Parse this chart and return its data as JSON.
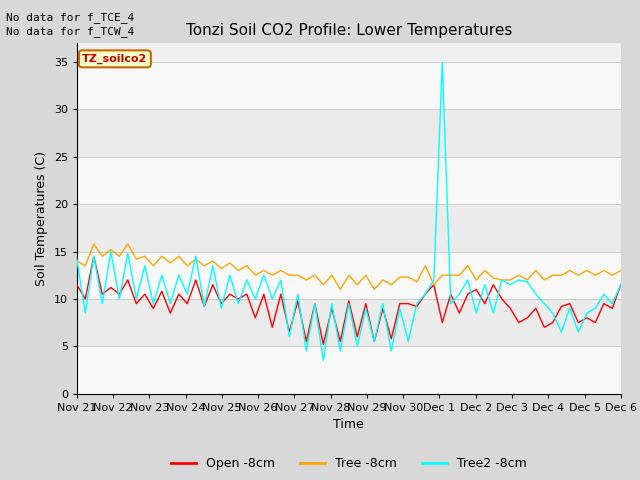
{
  "title": "Tonzi Soil CO2 Profile: Lower Temperatures",
  "ylabel": "Soil Temperatures (C)",
  "xlabel": "Time",
  "annotations": [
    "No data for f_TCE_4",
    "No data for f_TCW_4"
  ],
  "watermark": "TZ_soilco2",
  "ylim": [
    0,
    37
  ],
  "yticks": [
    0,
    5,
    10,
    15,
    20,
    25,
    30,
    35
  ],
  "xtick_labels": [
    "Nov 21",
    "Nov 22",
    "Nov 23",
    "Nov 24",
    "Nov 25",
    "Nov 26",
    "Nov 27",
    "Nov 28",
    "Nov 29",
    "Nov 30",
    "Dec 1",
    "Dec 2",
    "Dec 3",
    "Dec 4",
    "Dec 5",
    "Dec 6"
  ],
  "legend_labels": [
    "Open -8cm",
    "Tree -8cm",
    "Tree2 -8cm"
  ],
  "legend_colors": [
    "#ff0000",
    "#ffa500",
    "#00ffff"
  ],
  "bg_color": "#d8d8d8",
  "plot_bg_color": "#f0f0f0",
  "open_8cm": [
    11.5,
    10.0,
    14.5,
    10.5,
    11.2,
    10.5,
    12.0,
    9.5,
    10.5,
    9.0,
    10.8,
    8.5,
    10.5,
    9.5,
    12.0,
    9.2,
    11.5,
    9.5,
    10.5,
    10.0,
    10.5,
    8.0,
    10.5,
    7.0,
    10.5,
    6.5,
    9.8,
    5.5,
    9.5,
    5.2,
    9.0,
    5.5,
    9.8,
    6.0,
    9.5,
    5.5,
    9.0,
    5.8,
    9.5,
    9.5,
    9.2,
    10.5,
    11.5,
    7.5,
    10.5,
    8.5,
    10.5,
    11.0,
    9.5,
    11.5,
    10.0,
    9.0,
    7.5,
    8.0,
    9.0,
    7.0,
    7.5,
    9.2,
    9.5,
    7.5,
    8.0,
    7.5,
    9.5,
    9.0,
    11.5
  ],
  "tree_8cm": [
    14.0,
    13.5,
    15.8,
    14.5,
    15.2,
    14.5,
    15.8,
    14.2,
    14.5,
    13.5,
    14.5,
    13.8,
    14.5,
    13.5,
    14.2,
    13.5,
    14.0,
    13.2,
    13.8,
    13.0,
    13.5,
    12.5,
    13.0,
    12.5,
    13.0,
    12.5,
    12.5,
    12.0,
    12.5,
    11.5,
    12.5,
    11.0,
    12.5,
    11.5,
    12.5,
    11.0,
    12.0,
    11.5,
    12.3,
    12.3,
    11.8,
    13.5,
    11.5,
    12.5,
    12.5,
    12.5,
    13.5,
    12.0,
    13.0,
    12.2,
    12.0,
    12.0,
    12.5,
    12.0,
    13.0,
    12.0,
    12.5,
    12.5,
    13.0,
    12.5,
    13.0,
    12.5,
    13.0,
    12.5,
    13.0
  ],
  "tree2_8cm": [
    14.2,
    8.5,
    14.5,
    9.5,
    15.0,
    10.0,
    14.8,
    10.0,
    13.5,
    9.5,
    12.5,
    9.5,
    12.5,
    10.5,
    14.5,
    9.2,
    13.5,
    9.0,
    12.5,
    9.5,
    12.0,
    10.0,
    12.5,
    10.0,
    12.0,
    6.0,
    10.5,
    4.5,
    9.5,
    3.5,
    9.5,
    4.5,
    9.5,
    5.0,
    9.0,
    5.5,
    9.5,
    4.5,
    9.0,
    5.5,
    9.5,
    10.5,
    12.0,
    35.0,
    9.5,
    10.5,
    12.0,
    8.5,
    11.5,
    8.5,
    12.0,
    11.5,
    12.0,
    11.8,
    10.5,
    9.5,
    8.5,
    6.5,
    9.0,
    6.5,
    8.5,
    9.0,
    10.5,
    9.5,
    11.5
  ]
}
